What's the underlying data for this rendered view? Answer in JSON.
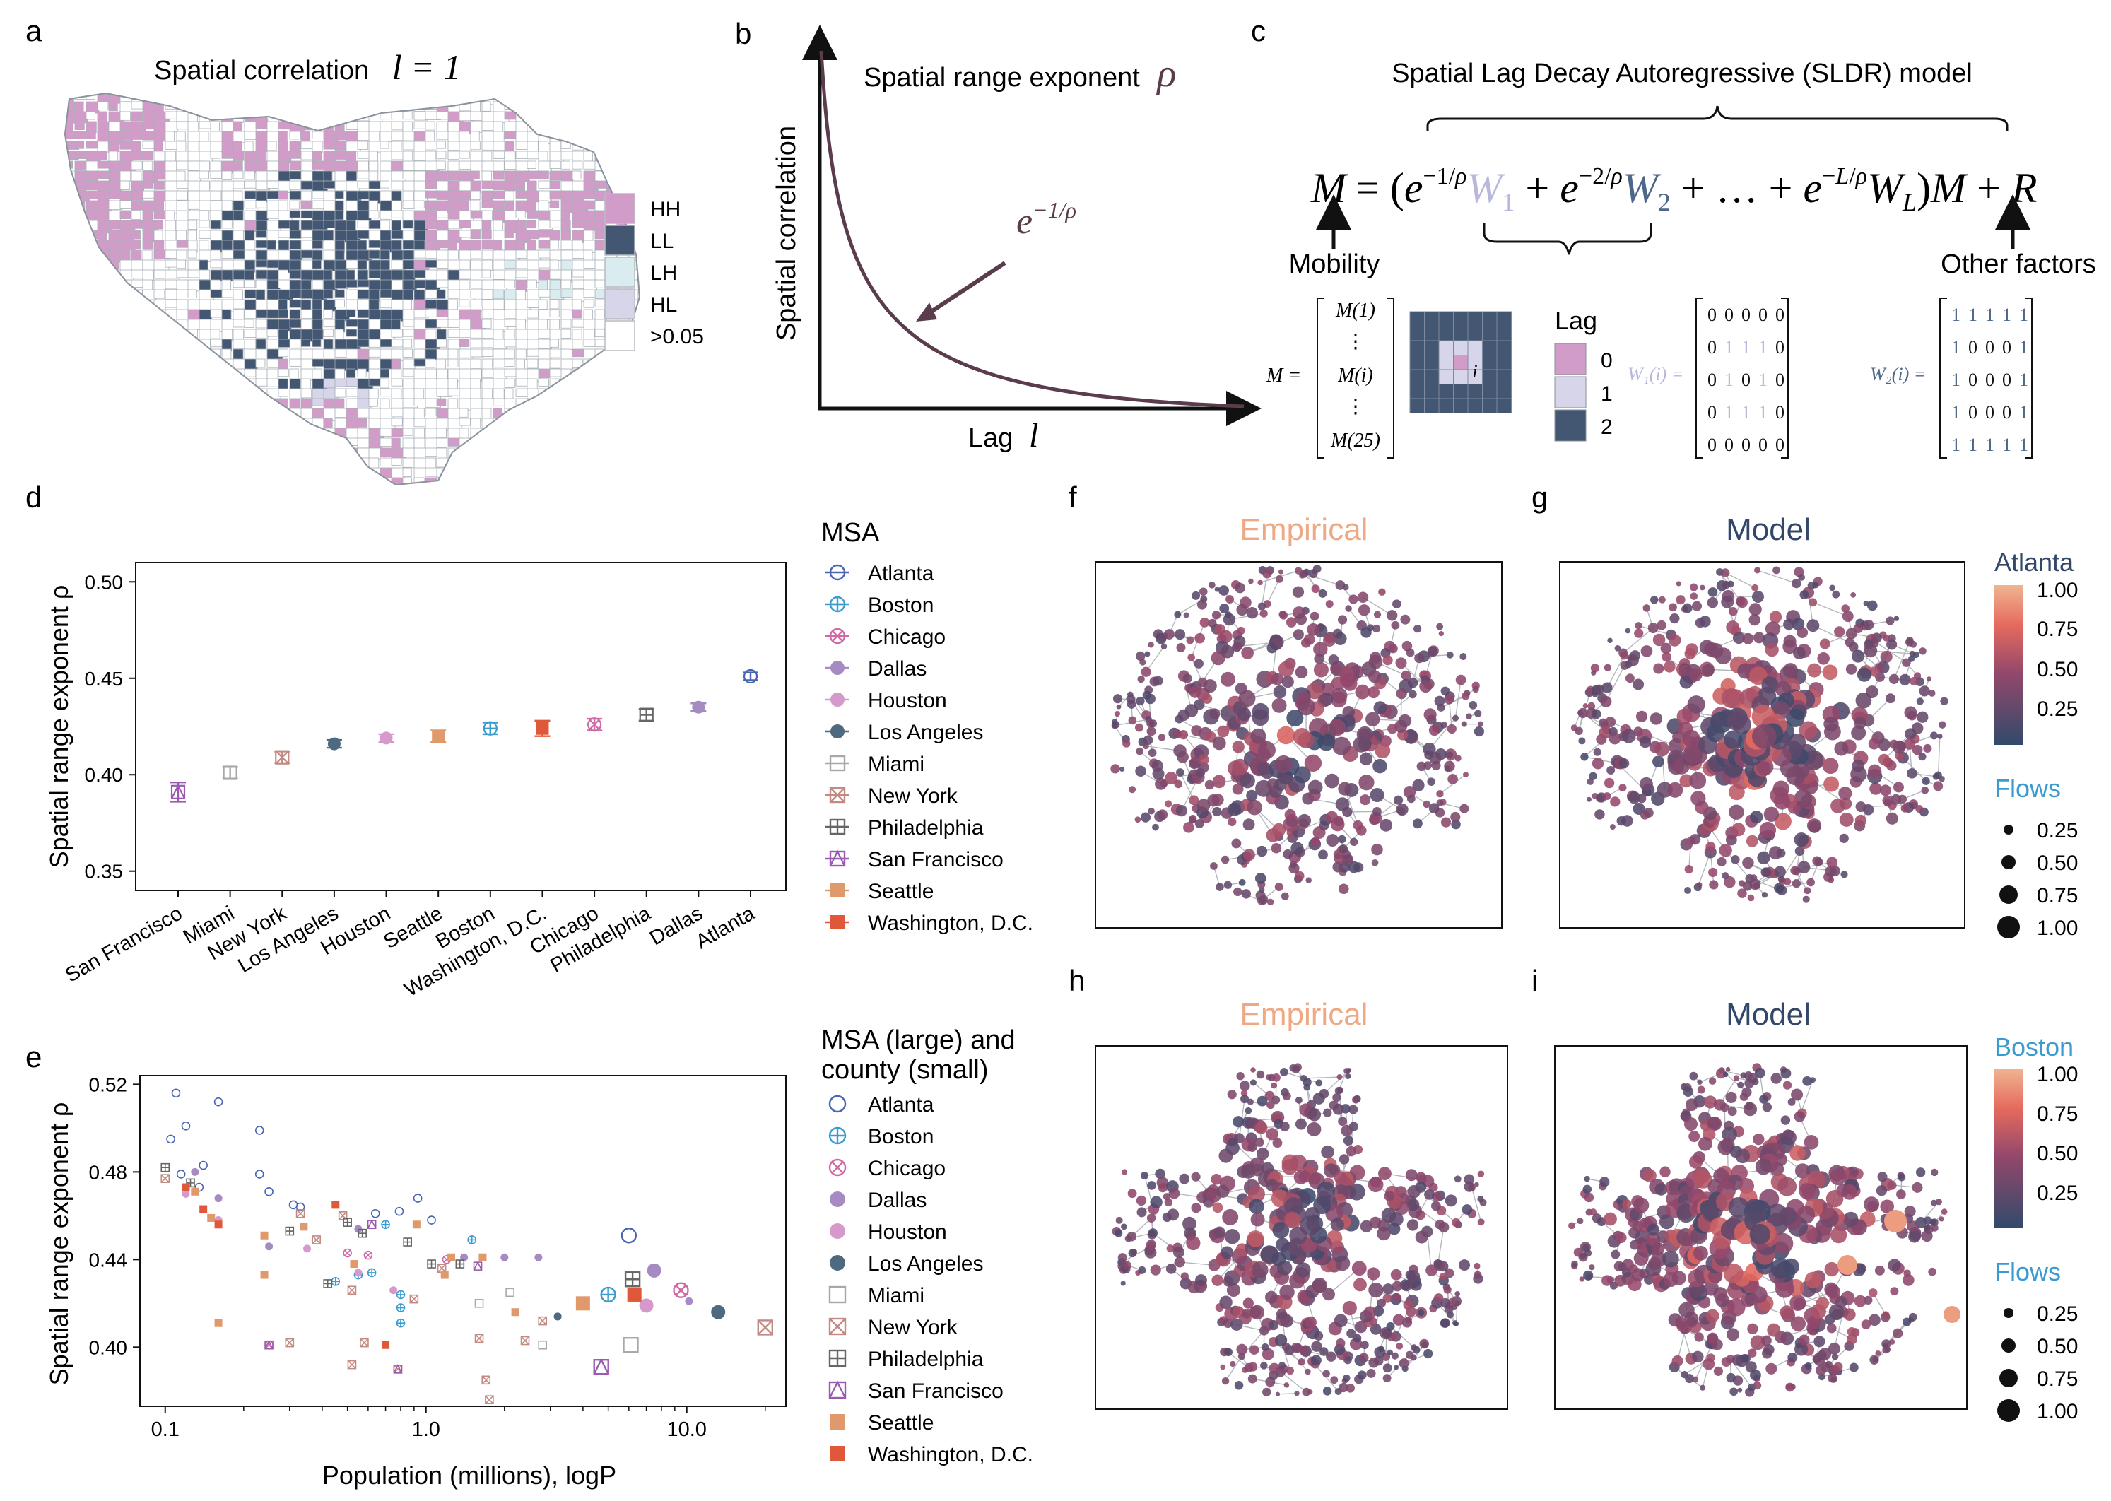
{
  "panels": {
    "a": {
      "letter": "a",
      "title": "Spatial correlation",
      "title_math": "l = 1",
      "legend": [
        {
          "label": "HH",
          "color": "#d29cc8"
        },
        {
          "label": "LL",
          "color": "#435672"
        },
        {
          "label": "LH",
          "color": "#d9ecef"
        },
        {
          "label": "HL",
          "color": "#d7d5ea"
        },
        {
          "label": ">0.05",
          "color": "#ffffff"
        }
      ]
    },
    "b": {
      "letter": "b",
      "title": "Spatial range exponent",
      "title_symbol": "ρ",
      "ylabel": "Spatial correlation",
      "xlabel": "Lag",
      "xlabel_symbol": "l",
      "curve_label": "e",
      "curve_label_exp": "−1/ρ"
    },
    "c": {
      "letter": "c",
      "title": "Spatial Lag Decay Autoregressive (SLDR) model",
      "equation_lhs": "M",
      "equation_rhs": "= (e",
      "label_mobility": "Mobility",
      "label_other": "Other factors",
      "vector_entries": [
        "M(1)",
        "⋮",
        "M(i)",
        "⋮",
        "M(25)"
      ],
      "vector_lhs": "M =",
      "lag_title": "Lag",
      "lag_items": [
        {
          "label": "0",
          "color": "#d29cc8"
        },
        {
          "label": "1",
          "color": "#d7d5ea"
        },
        {
          "label": "2",
          "color": "#435672"
        }
      ],
      "center_cell": "i",
      "w1_label": "W₁(i) =",
      "w2_label": "W₂(i) =",
      "w1": [
        [
          0,
          0,
          0,
          0,
          0
        ],
        [
          0,
          1,
          1,
          1,
          0
        ],
        [
          0,
          1,
          0,
          1,
          0
        ],
        [
          0,
          1,
          1,
          1,
          0
        ],
        [
          0,
          0,
          0,
          0,
          0
        ]
      ],
      "w2": [
        [
          1,
          1,
          1,
          1,
          1
        ],
        [
          1,
          0,
          0,
          0,
          1
        ],
        [
          1,
          0,
          0,
          0,
          1
        ],
        [
          1,
          0,
          0,
          0,
          1
        ],
        [
          1,
          1,
          1,
          1,
          1
        ]
      ]
    },
    "d": {
      "letter": "d",
      "legend_title": "MSA"
    },
    "e": {
      "letter": "e",
      "legend_title_1": "MSA (large) and",
      "legend_title_2": "county (small)"
    },
    "f": {
      "letter": "f",
      "title": "Empirical"
    },
    "g": {
      "letter": "g",
      "title": "Model",
      "colorbar_title": "Atlanta",
      "colorbar_ticks": [
        "1.00",
        "0.75",
        "0.50",
        "0.25"
      ],
      "flows_title": "Flows",
      "flows_ticks": [
        "0.25",
        "0.50",
        "0.75",
        "1.00"
      ]
    },
    "h": {
      "letter": "h",
      "title": "Empirical"
    },
    "i": {
      "letter": "i",
      "title": "Model",
      "colorbar_title": "Boston",
      "colorbar_ticks": [
        "1.00",
        "0.75",
        "0.50",
        "0.25"
      ],
      "flows_title": "Flows",
      "flows_ticks": [
        "0.25",
        "0.50",
        "0.75",
        "1.00"
      ]
    }
  },
  "msa_legend": [
    {
      "name": "Atlanta",
      "color": "#4a64b5",
      "marker": "circle-open-dash"
    },
    {
      "name": "Boston",
      "color": "#3a9bd0",
      "marker": "circle-plus"
    },
    {
      "name": "Chicago",
      "color": "#d06aa6",
      "marker": "circle-x"
    },
    {
      "name": "Dallas",
      "color": "#a68bc3",
      "marker": "circle-fill"
    },
    {
      "name": "Houston",
      "color": "#d59acb",
      "marker": "circle-fill"
    },
    {
      "name": "Los Angeles",
      "color": "#4d6a80",
      "marker": "circle-fill"
    },
    {
      "name": "Miami",
      "color": "#a8a8a8",
      "marker": "square-open-dash"
    },
    {
      "name": "New York",
      "color": "#c28a82",
      "marker": "square-x"
    },
    {
      "name": "Philadelphia",
      "color": "#666666",
      "marker": "square-plus"
    },
    {
      "name": "San Francisco",
      "color": "#9a5ab0",
      "marker": "square-triangle"
    },
    {
      "name": "Seattle",
      "color": "#e0996a",
      "marker": "square-fill"
    },
    {
      "name": "Washington, D.C.",
      "color": "#e0583a",
      "marker": "square-fill"
    }
  ],
  "chart_data": [
    {
      "panel": "d",
      "type": "scatter",
      "ylabel": "Spatial range exponent ρ",
      "ylim": [
        0.34,
        0.51
      ],
      "yticks": [
        "0.35",
        "0.40",
        "0.45",
        "0.50"
      ],
      "categories": [
        "San Francisco",
        "Miami",
        "New York",
        "Los Angeles",
        "Houston",
        "Seattle",
        "Boston",
        "Washington, D.C.",
        "Chicago",
        "Philadelphia",
        "Dallas",
        "Atlanta"
      ],
      "values": [
        0.391,
        0.401,
        0.409,
        0.416,
        0.419,
        0.42,
        0.424,
        0.424,
        0.426,
        0.431,
        0.435,
        0.451
      ],
      "errors": [
        0.005,
        0.003,
        0.003,
        0.002,
        0.002,
        0.003,
        0.003,
        0.004,
        0.003,
        0.003,
        0.002,
        0.002
      ]
    },
    {
      "panel": "e",
      "type": "scatter",
      "xscale": "log",
      "xlabel": "Population (millions), logP",
      "ylabel": "Spatial range exponent ρ",
      "xlim": [
        0.08,
        24
      ],
      "ylim": [
        0.373,
        0.524
      ],
      "xticks": [
        "0.1",
        "1.0",
        "10.0"
      ],
      "yticks": [
        "0.40",
        "0.44",
        "0.48",
        "0.52"
      ],
      "large": [
        {
          "msa": "Atlanta",
          "x": 6.0,
          "y": 0.451
        },
        {
          "msa": "Boston",
          "x": 5.0,
          "y": 0.424
        },
        {
          "msa": "Chicago",
          "x": 9.5,
          "y": 0.426
        },
        {
          "msa": "Dallas",
          "x": 7.5,
          "y": 0.435
        },
        {
          "msa": "Houston",
          "x": 7.0,
          "y": 0.419
        },
        {
          "msa": "Los Angeles",
          "x": 13.2,
          "y": 0.416
        },
        {
          "msa": "Miami",
          "x": 6.1,
          "y": 0.401
        },
        {
          "msa": "New York",
          "x": 20.0,
          "y": 0.409
        },
        {
          "msa": "Philadelphia",
          "x": 6.2,
          "y": 0.431
        },
        {
          "msa": "San Francisco",
          "x": 4.7,
          "y": 0.391
        },
        {
          "msa": "Seattle",
          "x": 4.0,
          "y": 0.42
        },
        {
          "msa": "Washington, D.C.",
          "x": 6.3,
          "y": 0.424
        }
      ],
      "small": [
        {
          "msa": "Atlanta",
          "x": 0.11,
          "y": 0.516
        },
        {
          "msa": "Atlanta",
          "x": 0.12,
          "y": 0.501
        },
        {
          "msa": "Atlanta",
          "x": 0.16,
          "y": 0.512
        },
        {
          "msa": "Atlanta",
          "x": 0.105,
          "y": 0.495
        },
        {
          "msa": "Atlanta",
          "x": 0.14,
          "y": 0.483
        },
        {
          "msa": "Atlanta",
          "x": 0.23,
          "y": 0.499
        },
        {
          "msa": "Atlanta",
          "x": 0.23,
          "y": 0.479
        },
        {
          "msa": "Atlanta",
          "x": 0.25,
          "y": 0.471
        },
        {
          "msa": "Atlanta",
          "x": 0.31,
          "y": 0.465
        },
        {
          "msa": "Atlanta",
          "x": 0.33,
          "y": 0.464
        },
        {
          "msa": "Atlanta",
          "x": 0.64,
          "y": 0.461
        },
        {
          "msa": "Atlanta",
          "x": 0.79,
          "y": 0.462
        },
        {
          "msa": "Atlanta",
          "x": 0.93,
          "y": 0.468
        },
        {
          "msa": "Atlanta",
          "x": 1.05,
          "y": 0.458
        },
        {
          "msa": "Atlanta",
          "x": 0.115,
          "y": 0.479
        },
        {
          "msa": "Atlanta",
          "x": 0.135,
          "y": 0.473
        },
        {
          "msa": "Boston",
          "x": 0.45,
          "y": 0.43
        },
        {
          "msa": "Boston",
          "x": 0.62,
          "y": 0.434
        },
        {
          "msa": "Boston",
          "x": 0.7,
          "y": 0.456
        },
        {
          "msa": "Boston",
          "x": 0.8,
          "y": 0.424
        },
        {
          "msa": "Boston",
          "x": 0.8,
          "y": 0.418
        },
        {
          "msa": "Boston",
          "x": 0.8,
          "y": 0.411
        },
        {
          "msa": "Boston",
          "x": 1.5,
          "y": 0.449
        },
        {
          "msa": "Boston",
          "x": 0.55,
          "y": 0.433
        },
        {
          "msa": "Chicago",
          "x": 0.6,
          "y": 0.442
        },
        {
          "msa": "Chicago",
          "x": 1.2,
          "y": 0.44
        },
        {
          "msa": "Chicago",
          "x": 0.5,
          "y": 0.443
        },
        {
          "msa": "Chicago",
          "x": 0.25,
          "y": 0.401
        },
        {
          "msa": "Dallas",
          "x": 0.13,
          "y": 0.48
        },
        {
          "msa": "Dallas",
          "x": 0.16,
          "y": 0.468
        },
        {
          "msa": "Dallas",
          "x": 0.25,
          "y": 0.446
        },
        {
          "msa": "Dallas",
          "x": 0.55,
          "y": 0.454
        },
        {
          "msa": "Dallas",
          "x": 2.0,
          "y": 0.441
        },
        {
          "msa": "Dallas",
          "x": 2.7,
          "y": 0.441
        },
        {
          "msa": "Dallas",
          "x": 10.2,
          "y": 0.421
        },
        {
          "msa": "Dallas",
          "x": 1.4,
          "y": 0.441
        },
        {
          "msa": "Houston",
          "x": 0.12,
          "y": 0.47
        },
        {
          "msa": "Houston",
          "x": 0.16,
          "y": 0.458
        },
        {
          "msa": "Houston",
          "x": 0.35,
          "y": 0.445
        },
        {
          "msa": "Houston",
          "x": 0.55,
          "y": 0.434
        },
        {
          "msa": "Houston",
          "x": 0.75,
          "y": 0.426
        },
        {
          "msa": "Los Angeles",
          "x": 3.2,
          "y": 0.414
        },
        {
          "msa": "Miami",
          "x": 1.6,
          "y": 0.42
        },
        {
          "msa": "Miami",
          "x": 2.1,
          "y": 0.425
        },
        {
          "msa": "Miami",
          "x": 2.8,
          "y": 0.401
        },
        {
          "msa": "New York",
          "x": 0.1,
          "y": 0.477
        },
        {
          "msa": "New York",
          "x": 0.38,
          "y": 0.449
        },
        {
          "msa": "New York",
          "x": 0.52,
          "y": 0.426
        },
        {
          "msa": "New York",
          "x": 0.3,
          "y": 0.402
        },
        {
          "msa": "New York",
          "x": 0.58,
          "y": 0.402
        },
        {
          "msa": "New York",
          "x": 0.52,
          "y": 0.392
        },
        {
          "msa": "New York",
          "x": 0.78,
          "y": 0.39
        },
        {
          "msa": "New York",
          "x": 0.9,
          "y": 0.422
        },
        {
          "msa": "New York",
          "x": 1.6,
          "y": 0.404
        },
        {
          "msa": "New York",
          "x": 1.7,
          "y": 0.385
        },
        {
          "msa": "New York",
          "x": 1.75,
          "y": 0.376
        },
        {
          "msa": "New York",
          "x": 2.4,
          "y": 0.403
        },
        {
          "msa": "New York",
          "x": 2.8,
          "y": 0.412
        },
        {
          "msa": "New York",
          "x": 1.15,
          "y": 0.436
        },
        {
          "msa": "New York",
          "x": 0.33,
          "y": 0.461
        },
        {
          "msa": "New York",
          "x": 0.48,
          "y": 0.46
        },
        {
          "msa": "Philadelphia",
          "x": 0.1,
          "y": 0.482
        },
        {
          "msa": "Philadelphia",
          "x": 0.125,
          "y": 0.475
        },
        {
          "msa": "Philadelphia",
          "x": 0.3,
          "y": 0.453
        },
        {
          "msa": "Philadelphia",
          "x": 0.42,
          "y": 0.429
        },
        {
          "msa": "Philadelphia",
          "x": 0.5,
          "y": 0.457
        },
        {
          "msa": "Philadelphia",
          "x": 0.57,
          "y": 0.452
        },
        {
          "msa": "Philadelphia",
          "x": 0.85,
          "y": 0.448
        },
        {
          "msa": "Philadelphia",
          "x": 1.05,
          "y": 0.438
        },
        {
          "msa": "Philadelphia",
          "x": 1.35,
          "y": 0.438
        },
        {
          "msa": "San Francisco",
          "x": 0.25,
          "y": 0.401
        },
        {
          "msa": "San Francisco",
          "x": 0.78,
          "y": 0.39
        },
        {
          "msa": "San Francisco",
          "x": 0.62,
          "y": 0.456
        },
        {
          "msa": "San Francisco",
          "x": 1.58,
          "y": 0.437
        },
        {
          "msa": "Seattle",
          "x": 0.13,
          "y": 0.471
        },
        {
          "msa": "Seattle",
          "x": 0.15,
          "y": 0.459
        },
        {
          "msa": "Seattle",
          "x": 0.16,
          "y": 0.411
        },
        {
          "msa": "Seattle",
          "x": 0.24,
          "y": 0.451
        },
        {
          "msa": "Seattle",
          "x": 0.24,
          "y": 0.433
        },
        {
          "msa": "Seattle",
          "x": 0.34,
          "y": 0.455
        },
        {
          "msa": "Seattle",
          "x": 0.53,
          "y": 0.438
        },
        {
          "msa": "Seattle",
          "x": 0.92,
          "y": 0.456
        },
        {
          "msa": "Seattle",
          "x": 1.18,
          "y": 0.433
        },
        {
          "msa": "Seattle",
          "x": 1.25,
          "y": 0.441
        },
        {
          "msa": "Seattle",
          "x": 1.65,
          "y": 0.441
        },
        {
          "msa": "Seattle",
          "x": 2.2,
          "y": 0.416
        },
        {
          "msa": "Washington, D.C.",
          "x": 0.12,
          "y": 0.473
        },
        {
          "msa": "Washington, D.C.",
          "x": 0.14,
          "y": 0.463
        },
        {
          "msa": "Washington, D.C.",
          "x": 0.16,
          "y": 0.456
        },
        {
          "msa": "Washington, D.C.",
          "x": 0.45,
          "y": 0.465
        },
        {
          "msa": "Washington, D.C.",
          "x": 0.7,
          "y": 0.401
        }
      ]
    }
  ]
}
